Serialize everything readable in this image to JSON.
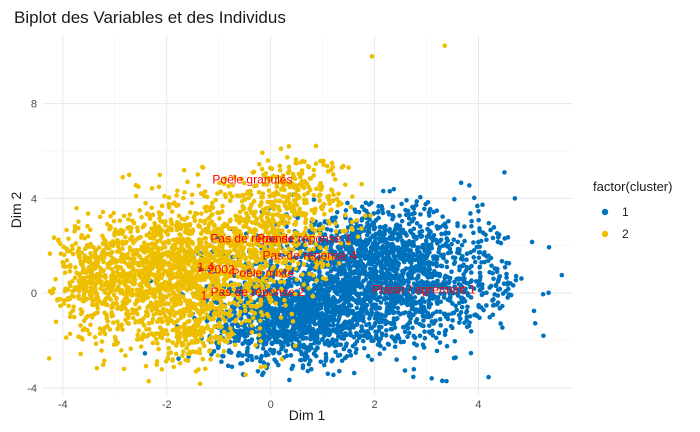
{
  "chart_data": {
    "type": "scatter",
    "title": "Biplot des Variables et des Individus",
    "xlabel": "Dim 1",
    "ylabel": "Dim 2",
    "xlim": [
      -4.4,
      5.8
    ],
    "ylim": [
      -4.3,
      10.9
    ],
    "x_ticks": [
      -4,
      -2,
      0,
      2,
      4
    ],
    "y_ticks": [
      -4,
      0,
      4,
      8
    ],
    "grid": true,
    "legend": {
      "title": "factor(cluster)",
      "placement": "right",
      "entries": [
        {
          "label": "1",
          "color": "#0072BD"
        },
        {
          "label": "2",
          "color": "#EDBF00"
        }
      ]
    },
    "series": [
      {
        "name": "1",
        "color": "#0072BD",
        "clusters": [
          {
            "n": 1500,
            "cx": 1.6,
            "cy": 0.2,
            "sx": 1.25,
            "sy": 1.3
          },
          {
            "n": 900,
            "cx": 0.3,
            "cy": -1.2,
            "sx": 0.7,
            "sy": 0.85
          },
          {
            "n": 500,
            "cx": 2.0,
            "cy": 2.0,
            "sx": 1.0,
            "sy": 0.9
          },
          {
            "n": 300,
            "cx": 3.2,
            "cy": 0.4,
            "sx": 0.9,
            "sy": 1.2
          }
        ],
        "points": [
          [
            5.25,
            -1.8
          ],
          [
            4.5,
            5.1
          ],
          [
            3.1,
            -3.6
          ],
          [
            4.7,
            4.0
          ],
          [
            -0.45,
            -2.5
          ]
        ]
      },
      {
        "name": "2",
        "color": "#EDBF00",
        "clusters": [
          {
            "n": 1600,
            "cx": -2.0,
            "cy": 0.7,
            "sx": 0.95,
            "sy": 1.4
          },
          {
            "n": 550,
            "cx": -0.3,
            "cy": 2.4,
            "sx": 0.75,
            "sy": 1.2
          },
          {
            "n": 200,
            "cx": 0.5,
            "cy": 4.2,
            "sx": 0.5,
            "sy": 0.9
          },
          {
            "n": 150,
            "cx": -3.5,
            "cy": 0.6,
            "sx": 0.3,
            "sy": 0.9
          },
          {
            "n": 120,
            "cx": -1.6,
            "cy": -1.8,
            "sx": 0.45,
            "sy": 0.55
          }
        ],
        "points": [
          [
            1.95,
            10.0
          ],
          [
            3.35,
            10.45
          ],
          [
            0.35,
            6.2
          ],
          [
            0.2,
            6.1
          ],
          [
            -0.05,
            5.6
          ],
          [
            1.5,
            5.3
          ],
          [
            -1.6,
            4.7
          ],
          [
            -3.75,
            2.1
          ],
          [
            -4.05,
            -0.25
          ],
          [
            -3.85,
            -0.85
          ]
        ]
      }
    ],
    "variables": [
      {
        "label": "Poêle granulés",
        "x": -0.35,
        "y": 4.8
      },
      {
        "label": "Pas de réponse",
        "x": -0.35,
        "y": 2.3
      },
      {
        "label": "Pas de réponse 1",
        "x": 0.65,
        "y": 2.3
      },
      {
        "label": "Pas de réponse 4",
        "x": 0.75,
        "y": 1.6
      },
      {
        "label": "1.4",
        "x": -1.25,
        "y": 1.1
      },
      {
        "label": "> 2002",
        "x": -1.05,
        "y": 1.0
      },
      {
        "label": "Poêle mixte",
        "x": -0.15,
        "y": 0.85
      },
      {
        "label": "Pas de réponse 2",
        "x": -0.25,
        "y": 0.05
      },
      {
        "label": "Plaisir / agrément 1",
        "x": 2.95,
        "y": 0.15
      },
      {
        "label": "1.",
        "x": -1.25,
        "y": -0.1
      }
    ]
  }
}
